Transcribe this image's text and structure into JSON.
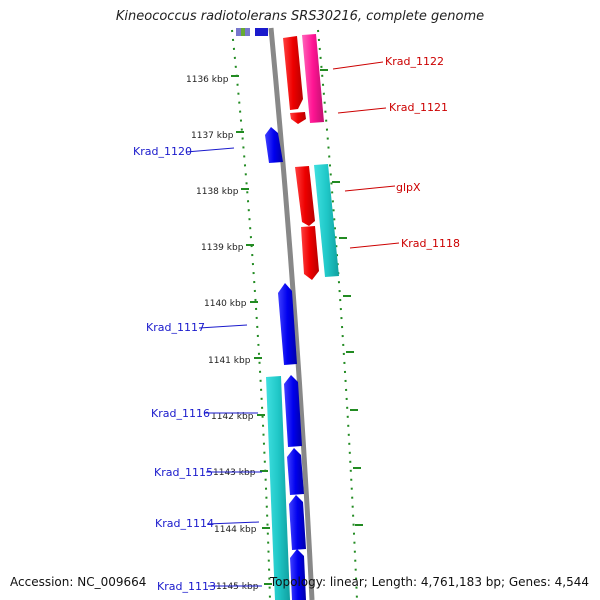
{
  "title": "Kineococcus radiotolerans SRS30216, complete genome",
  "footer": {
    "accession": "Accession: NC_009664",
    "summary": "Topology: linear; Length: 4,761,183 bp; Genes: 4,544"
  },
  "ticks": [
    "1136 kbp",
    "1137 kbp",
    "1138 kbp",
    "1139 kbp",
    "1140 kbp",
    "1141 kbp",
    "1142 kbp",
    "1143 kbp",
    "1144 kbp",
    "1145 kbp"
  ],
  "genes": [
    {
      "label": "Krad_1122",
      "strand": "forward",
      "color": "#cc0000"
    },
    {
      "label": "Krad_1121",
      "strand": "forward",
      "color": "#cc0000"
    },
    {
      "label": "Krad_1120",
      "strand": "reverse",
      "color": "#1a1acc"
    },
    {
      "label": "glpX",
      "strand": "forward",
      "color": "#cc0000"
    },
    {
      "label": "Krad_1118",
      "strand": "forward",
      "color": "#cc0000"
    },
    {
      "label": "Krad_1117",
      "strand": "reverse",
      "color": "#1a1acc"
    },
    {
      "label": "Krad_1116",
      "strand": "reverse",
      "color": "#1a1acc"
    },
    {
      "label": "Krad_1115",
      "strand": "reverse",
      "color": "#1a1acc"
    },
    {
      "label": "Krad_1114",
      "strand": "reverse",
      "color": "#1a1acc"
    },
    {
      "label": "Krad_1113",
      "strand": "reverse",
      "color": "#1a1acc"
    }
  ],
  "colors": {
    "forward_cds": "#ff0000",
    "forward_feature": "#ff1493",
    "reverse_cds": "#0000ee",
    "reverse_feature": "#20c8c8",
    "backbone": "#888888",
    "tick": "#228B22"
  }
}
